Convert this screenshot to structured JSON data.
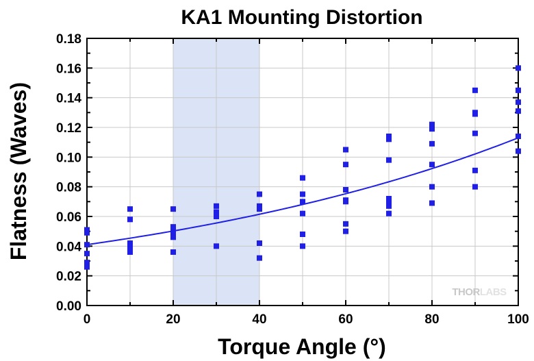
{
  "chart_data": {
    "type": "scatter",
    "title": "KA1 Mounting Distortion",
    "xlabel": "Torque Angle (°)",
    "ylabel": "Flatness (Waves)",
    "xlim": [
      0,
      100
    ],
    "ylim": [
      0,
      0.18
    ],
    "x_ticks": [
      0,
      20,
      40,
      60,
      80,
      100
    ],
    "y_ticks": [
      "0.00",
      "0.02",
      "0.04",
      "0.06",
      "0.08",
      "0.10",
      "0.12",
      "0.14",
      "0.16",
      "0.18"
    ],
    "grid": true,
    "highlight_band": [
      20,
      40
    ],
    "series": [
      {
        "marker": "square",
        "color": "#1f1fe6",
        "points": [
          [
            0,
            0.051
          ],
          [
            0,
            0.049
          ],
          [
            0,
            0.041
          ],
          [
            0,
            0.035
          ],
          [
            0,
            0.029
          ],
          [
            0,
            0.026
          ],
          [
            10,
            0.065
          ],
          [
            10,
            0.058
          ],
          [
            10,
            0.042
          ],
          [
            10,
            0.04
          ],
          [
            10,
            0.038
          ],
          [
            10,
            0.036
          ],
          [
            20,
            0.065
          ],
          [
            20,
            0.053
          ],
          [
            20,
            0.051
          ],
          [
            20,
            0.049
          ],
          [
            20,
            0.046
          ],
          [
            20,
            0.036
          ],
          [
            30,
            0.067
          ],
          [
            30,
            0.063
          ],
          [
            30,
            0.06
          ],
          [
            30,
            0.04
          ],
          [
            40,
            0.075
          ],
          [
            40,
            0.067
          ],
          [
            40,
            0.065
          ],
          [
            40,
            0.042
          ],
          [
            40,
            0.032
          ],
          [
            50,
            0.086
          ],
          [
            50,
            0.075
          ],
          [
            50,
            0.07
          ],
          [
            50,
            0.062
          ],
          [
            50,
            0.048
          ],
          [
            50,
            0.04
          ],
          [
            60,
            0.105
          ],
          [
            60,
            0.095
          ],
          [
            60,
            0.078
          ],
          [
            60,
            0.071
          ],
          [
            60,
            0.07
          ],
          [
            60,
            0.055
          ],
          [
            60,
            0.05
          ],
          [
            70,
            0.114
          ],
          [
            70,
            0.112
          ],
          [
            70,
            0.098
          ],
          [
            70,
            0.072
          ],
          [
            70,
            0.07
          ],
          [
            70,
            0.067
          ],
          [
            70,
            0.062
          ],
          [
            80,
            0.122
          ],
          [
            80,
            0.119
          ],
          [
            80,
            0.109
          ],
          [
            80,
            0.095
          ],
          [
            80,
            0.08
          ],
          [
            80,
            0.069
          ],
          [
            90,
            0.145
          ],
          [
            90,
            0.13
          ],
          [
            90,
            0.129
          ],
          [
            90,
            0.116
          ],
          [
            90,
            0.091
          ],
          [
            90,
            0.08
          ],
          [
            100,
            0.16
          ],
          [
            100,
            0.145
          ],
          [
            100,
            0.137
          ],
          [
            100,
            0.131
          ],
          [
            100,
            0.114
          ],
          [
            100,
            0.104
          ]
        ]
      }
    ],
    "fit": {
      "type": "exponential",
      "color": "#1f1fe6",
      "points": [
        [
          0,
          0.041
        ],
        [
          20,
          0.048
        ],
        [
          40,
          0.059
        ],
        [
          60,
          0.072
        ],
        [
          80,
          0.09
        ],
        [
          100,
          0.113
        ]
      ]
    }
  },
  "watermark": {
    "text_grey": "THOR",
    "text_light": "LABS"
  }
}
